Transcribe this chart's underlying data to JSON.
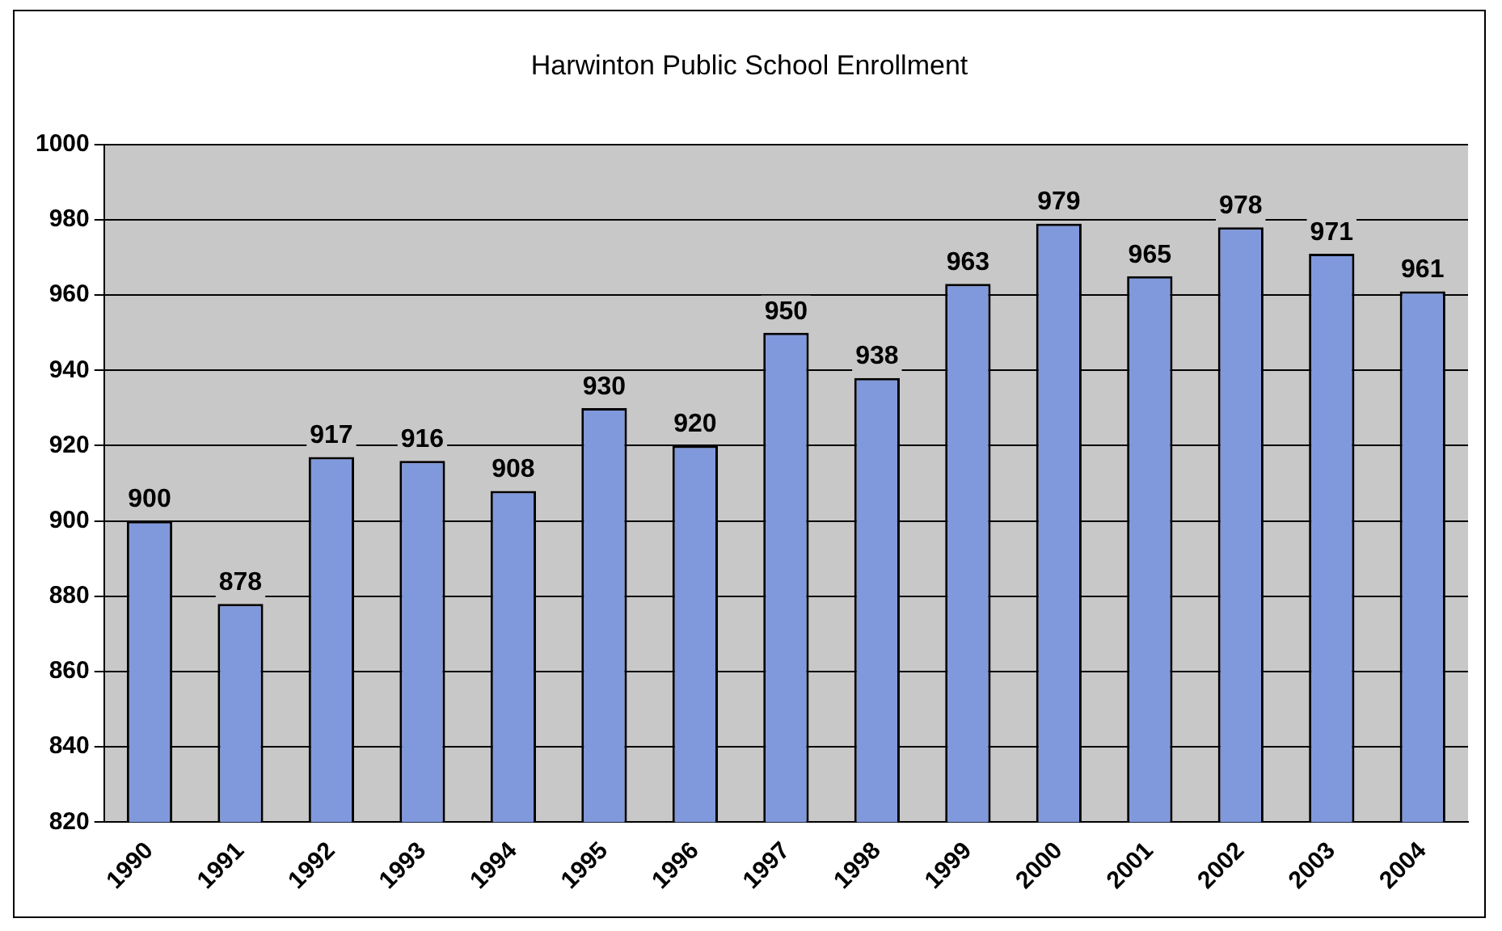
{
  "chart_data": {
    "type": "bar",
    "title": "Harwinton Public School Enrollment",
    "categories": [
      "1990",
      "1991",
      "1992",
      "1993",
      "1994",
      "1995",
      "1996",
      "1997",
      "1998",
      "1999",
      "2000",
      "2001",
      "2002",
      "2003",
      "2004"
    ],
    "values": [
      900,
      878,
      917,
      916,
      908,
      930,
      920,
      950,
      938,
      963,
      979,
      965,
      978,
      971,
      961
    ],
    "color": "#8099dd",
    "ylim": [
      820,
      1000
    ],
    "yticks": [
      820,
      840,
      860,
      880,
      900,
      920,
      940,
      960,
      980,
      1000
    ],
    "grid": "y",
    "data_labels": true
  }
}
